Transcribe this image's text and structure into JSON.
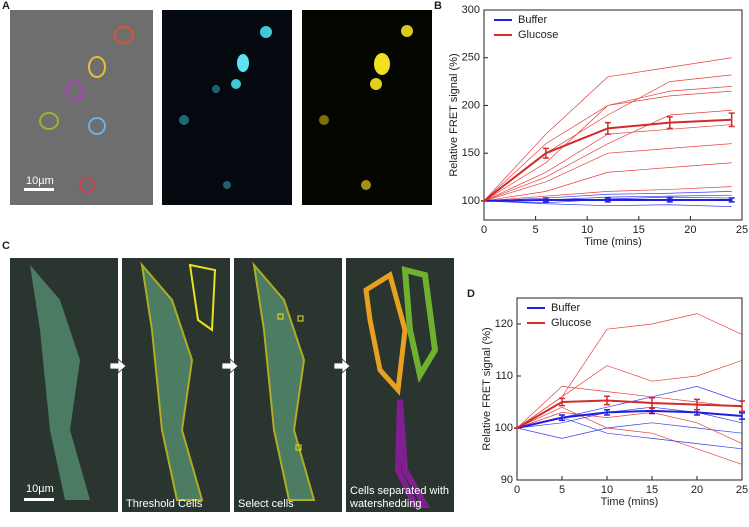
{
  "panels": {
    "a": {
      "label": "A",
      "scale_bar": "10µm"
    },
    "c": {
      "label": "C",
      "scale_bar": "10µm",
      "captions": [
        [
          "Threshold Cells"
        ],
        [
          "Select cells"
        ],
        [
          "Cells separated with",
          "watershedding"
        ]
      ]
    }
  },
  "chart_data": [
    {
      "type": "line",
      "label": "B",
      "xlabel": "Time (mins)",
      "ylabel": "Relative FRET signal (%)",
      "x": [
        0,
        6,
        12,
        18,
        24
      ],
      "xlim": [
        0,
        25
      ],
      "xticks": [
        0,
        5,
        10,
        15,
        20,
        25
      ],
      "ylim": [
        80,
        300
      ],
      "yticks": [
        100,
        150,
        200,
        250,
        300
      ],
      "legend": "top-left",
      "series": [
        {
          "name": "Buffer",
          "color": "#1f1fe0",
          "values": [
            100,
            101,
            101,
            101,
            101
          ],
          "errors": [
            0,
            2,
            2,
            2,
            2
          ]
        },
        {
          "name": "Glucose",
          "color": "#d42a2a",
          "values": [
            100,
            150,
            176,
            182,
            185
          ],
          "errors": [
            0,
            5,
            6,
            6,
            7
          ]
        }
      ],
      "traces": [
        {
          "color": "#e8403f",
          "values": [
            100,
            170,
            230,
            240,
            250
          ]
        },
        {
          "color": "#e8403f",
          "values": [
            100,
            140,
            200,
            215,
            220
          ]
        },
        {
          "color": "#e8403f",
          "values": [
            100,
            130,
            170,
            175,
            180
          ]
        },
        {
          "color": "#e8403f",
          "values": [
            100,
            120,
            150,
            155,
            160
          ]
        },
        {
          "color": "#e8403f",
          "values": [
            100,
            160,
            200,
            210,
            215
          ]
        },
        {
          "color": "#e8403f",
          "values": [
            100,
            110,
            130,
            135,
            140
          ]
        },
        {
          "color": "#e8403f",
          "values": [
            100,
            150,
            190,
            225,
            232
          ]
        },
        {
          "color": "#e8403f",
          "values": [
            100,
            125,
            160,
            190,
            195
          ]
        },
        {
          "color": "#e8403f",
          "values": [
            100,
            105,
            110,
            112,
            115
          ]
        },
        {
          "color": "#3b3bf0",
          "values": [
            100,
            98,
            102,
            104,
            103
          ]
        },
        {
          "color": "#3b3bf0",
          "values": [
            100,
            103,
            107,
            108,
            110
          ]
        },
        {
          "color": "#3b3bf0",
          "values": [
            100,
            97,
            95,
            96,
            94
          ]
        },
        {
          "color": "#3b3bf0",
          "values": [
            100,
            101,
            104,
            105,
            106
          ]
        }
      ]
    },
    {
      "type": "line",
      "label": "D",
      "xlabel": "Time (mins)",
      "ylabel": "Relative FRET signal (%)",
      "x": [
        0,
        5,
        10,
        15,
        20,
        25
      ],
      "xlim": [
        0,
        25
      ],
      "xticks": [
        0,
        5,
        10,
        15,
        20,
        25
      ],
      "ylim": [
        90,
        125
      ],
      "yticks": [
        90,
        100,
        110,
        120
      ],
      "legend": "top-left",
      "series": [
        {
          "name": "Buffer",
          "color": "#1f1fe0",
          "values": [
            100,
            102,
            103,
            103.3,
            103,
            102.3
          ],
          "errors": [
            0,
            0.5,
            0.5,
            0.5,
            0.5,
            0.6
          ]
        },
        {
          "name": "Glucose",
          "color": "#d42a2a",
          "values": [
            100,
            105,
            105.3,
            104.8,
            104.5,
            104.2
          ],
          "errors": [
            0,
            0.7,
            0.8,
            1,
            1,
            1
          ]
        }
      ],
      "traces": [
        {
          "color": "#e8403f",
          "values": [
            100,
            106,
            119,
            120,
            122,
            118
          ]
        },
        {
          "color": "#e8403f",
          "values": [
            100,
            108,
            107,
            106,
            105,
            104
          ]
        },
        {
          "color": "#e8403f",
          "values": [
            100,
            103,
            102,
            103,
            101,
            97
          ]
        },
        {
          "color": "#e8403f",
          "values": [
            100,
            106,
            112,
            109,
            110,
            113
          ]
        },
        {
          "color": "#e8403f",
          "values": [
            100,
            104,
            100,
            99,
            96,
            93
          ]
        },
        {
          "color": "#3b3bf0",
          "values": [
            100,
            101,
            103,
            104,
            103,
            101
          ]
        },
        {
          "color": "#3b3bf0",
          "values": [
            100,
            102,
            104,
            106,
            108,
            105
          ]
        },
        {
          "color": "#3b3bf0",
          "values": [
            100,
            98,
            100,
            101,
            100,
            99
          ]
        },
        {
          "color": "#3b3bf0",
          "values": [
            100,
            102,
            99,
            98,
            97,
            96
          ]
        }
      ]
    }
  ]
}
